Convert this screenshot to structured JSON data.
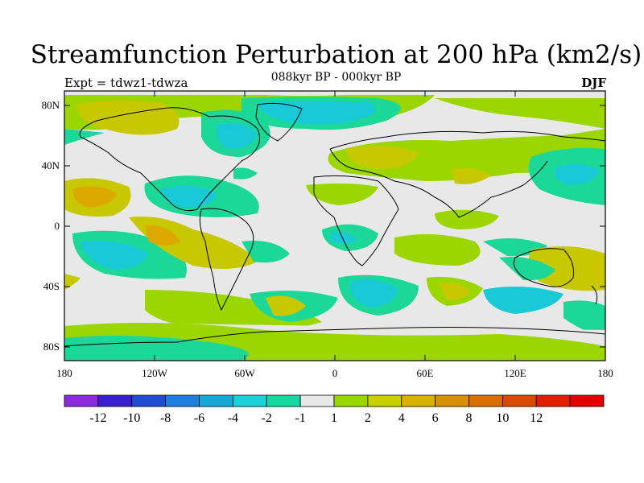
{
  "title": "Streamfunction Perturbation at 200 hPa (km2/s)",
  "subtitle_left": "Expt = tdwz1-tdwza",
  "subtitle_center": "088kyr BP - 000kyr BP",
  "subtitle_right": "DJF",
  "map": {
    "lat_ticks": [
      "80N",
      "40N",
      "0",
      "40S",
      "80S"
    ],
    "lon_ticks": [
      "180",
      "120W",
      "60W",
      "0",
      "60E",
      "120E",
      "180"
    ]
  },
  "colorbar": {
    "colors": [
      "#8d2bdc",
      "#3a1fd0",
      "#1f4cd0",
      "#1f7fe0",
      "#17a8d8",
      "#1ccfd8",
      "#17d8a0",
      "#e8e8e8",
      "#98d800",
      "#c8d000",
      "#d8b000",
      "#d89000",
      "#d86d00",
      "#d84a00",
      "#e02000",
      "#e40000"
    ],
    "labels": [
      "-12",
      "-10",
      "-8",
      "-6",
      "-4",
      "-2",
      "-1",
      "1",
      "2",
      "4",
      "6",
      "8",
      "10",
      "12"
    ]
  },
  "legend_palette": {
    "light_neg": "#1cd898",
    "mid_neg": "#19c9d6",
    "neutral": "#e8e8e8",
    "light_pos": "#9bd600",
    "mid_pos": "#c8c800",
    "strong_pos": "#dda800"
  }
}
